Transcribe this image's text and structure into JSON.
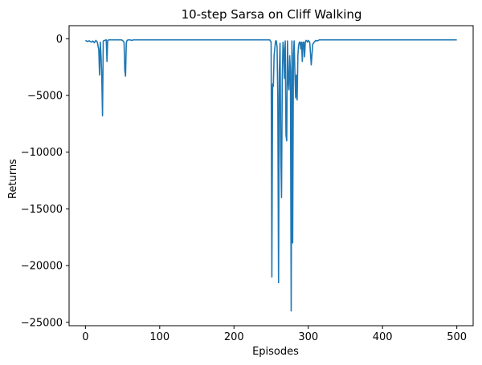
{
  "chart_data": {
    "type": "line",
    "title": "10-step Sarsa on Cliff Walking",
    "xlabel": "Episodes",
    "ylabel": "Returns",
    "xlim": [
      -22,
      522
    ],
    "ylim": [
      -25300,
      1150
    ],
    "xticks": [
      0,
      100,
      200,
      300,
      400,
      500
    ],
    "xtick_labels": [
      "0",
      "100",
      "200",
      "300",
      "400",
      "500"
    ],
    "yticks": [
      0,
      -5000,
      -10000,
      -15000,
      -20000,
      -25000
    ],
    "ytick_labels": [
      "0",
      "−5000",
      "−10000",
      "−15000",
      "−20000",
      "−25000"
    ],
    "grid": false,
    "line_color": "#1f77b4",
    "series": [
      {
        "x": [
          0,
          3,
          5,
          8,
          10,
          12,
          14,
          16,
          18,
          19,
          20,
          21,
          22,
          23,
          24,
          26,
          28,
          29,
          30,
          32,
          36,
          40,
          44,
          48,
          50,
          52,
          53,
          54,
          55,
          56,
          58,
          60,
          62,
          65,
          70,
          80,
          90,
          100,
          120,
          140,
          160,
          180,
          200,
          220,
          240,
          248,
          250,
          251,
          252,
          253,
          254,
          255,
          256,
          257,
          258,
          259,
          260,
          261,
          262,
          263,
          264,
          265,
          266,
          267,
          268,
          269,
          270,
          271,
          272,
          273,
          274,
          275,
          276,
          277,
          278,
          279,
          280,
          281,
          282,
          283,
          284,
          285,
          286,
          287,
          288,
          289,
          290,
          291,
          292,
          293,
          294,
          295,
          296,
          297,
          298,
          299,
          300,
          302,
          304,
          306,
          308,
          310,
          312,
          315,
          320,
          330,
          340,
          350,
          360,
          380,
          400,
          420,
          440,
          460,
          480,
          500
        ],
        "y": [
          -150,
          -250,
          -180,
          -300,
          -200,
          -350,
          -150,
          -300,
          -1000,
          -3200,
          -300,
          -1500,
          -3300,
          -6800,
          -200,
          -150,
          -100,
          -2000,
          -150,
          -100,
          -100,
          -100,
          -100,
          -100,
          -150,
          -300,
          -2800,
          -3300,
          -400,
          -150,
          -100,
          -100,
          -150,
          -100,
          -100,
          -100,
          -100,
          -100,
          -100,
          -100,
          -100,
          -100,
          -100,
          -100,
          -100,
          -100,
          -300,
          -21000,
          -4000,
          -4200,
          -1500,
          -800,
          -200,
          -200,
          -700,
          -5200,
          -21500,
          -3000,
          -400,
          -10000,
          -14000,
          -3600,
          -300,
          -1000,
          -3500,
          -200,
          -8500,
          -9000,
          -200,
          -3800,
          -4500,
          -1500,
          -2900,
          -24000,
          -200,
          -18000,
          -1500,
          -200,
          -3000,
          -5200,
          -3200,
          -5400,
          -1500,
          -600,
          -300,
          -300,
          -900,
          -300,
          -2000,
          -300,
          -300,
          -1600,
          -300,
          -150,
          -200,
          -300,
          -150,
          -300,
          -2300,
          -500,
          -300,
          -150,
          -200,
          -100,
          -100,
          -100,
          -100,
          -100,
          -100,
          -100,
          -100,
          -100,
          -100,
          -100,
          -100,
          -100
        ]
      }
    ]
  }
}
